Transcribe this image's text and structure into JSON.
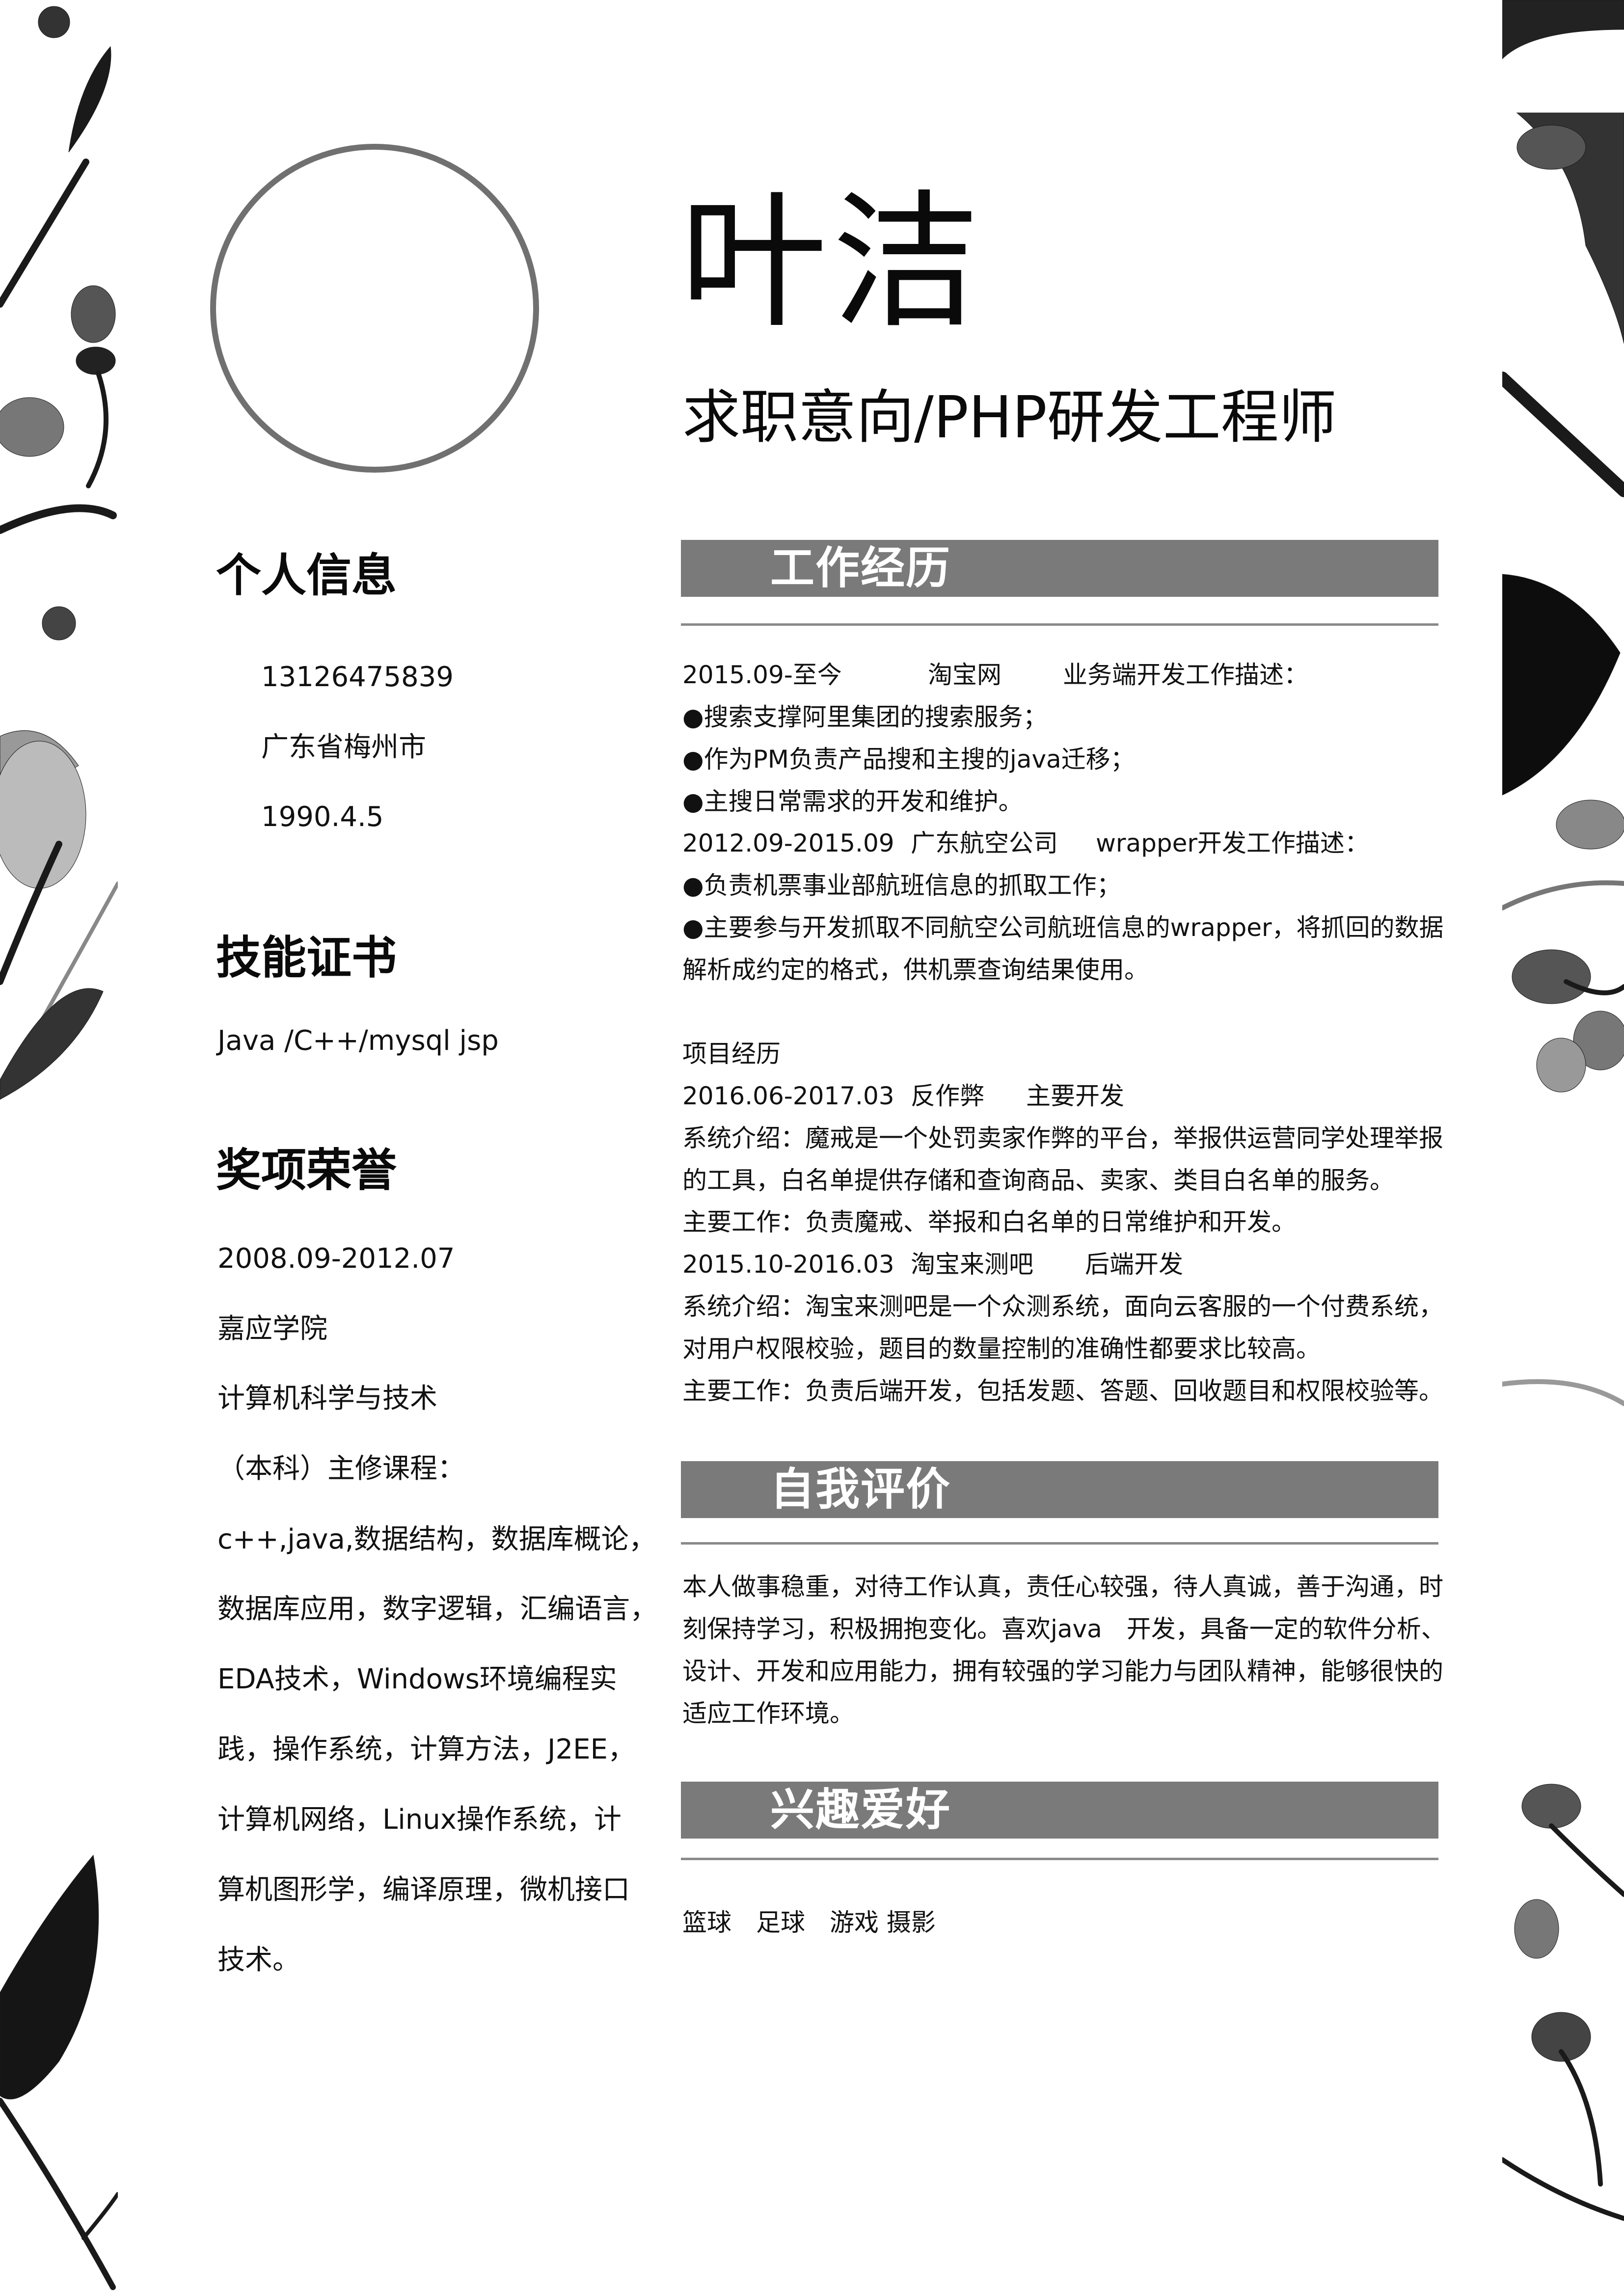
{
  "header": {
    "name": "叶洁",
    "intent": "求职意向/PHP研发工程师"
  },
  "personal": {
    "heading": "个人信息",
    "phone": "13126475839",
    "location": "广东省梅州市",
    "birth": "1990.4.5"
  },
  "skills": {
    "heading": "技能证书",
    "text": "Java /C++/mysql jsp"
  },
  "awards": {
    "heading": "奖项荣誉",
    "lines": [
      "2008.09-2012.07",
      "嘉应学院",
      "计算机科学与技术",
      "（本科）主修课程：",
      "c++,java,数据结构，数据库概论，",
      "数据库应用，数字逻辑，汇编语言，",
      "EDA技术，Windows环境编程实",
      "践，操作系统，计算方法，J2EE，",
      "计算机网络，Linux操作系统，计",
      "算机图形学，编译原理，微机接口",
      "技术。"
    ]
  },
  "work": {
    "heading": "工作经历",
    "job1": {
      "period": "2015.09-至今",
      "company": "淘宝网",
      "role": "业务端开发工作描述：",
      "bullets": [
        "●搜索支撑阿里集团的搜索服务；",
        "●作为PM负责产品搜和主搜的java迁移；",
        "●主搜日常需求的开发和维护。"
      ]
    },
    "job2": {
      "period": "2012.09-2015.09",
      "company": "广东航空公司",
      "role": "wrapper开发工作描述：",
      "bullets": [
        "●负责机票事业部航班信息的抓取工作；",
        "●主要参与开发抓取不同航空公司航班信息的wrapper，将抓回的数据",
        "解析成约定的格式，供机票查询结果使用。"
      ]
    },
    "projects_label": "项目经历",
    "project1": {
      "period": "2016.06-2017.03",
      "name": "反作弊",
      "role": "主要开发",
      "lines": [
        "系统介绍：魔戒是一个处罚卖家作弊的平台，举报供运营同学处理举报",
        "的工具，白名单提供存储和查询商品、卖家、类目白名单的服务。",
        "主要工作：负责魔戒、举报和白名单的日常维护和开发。"
      ]
    },
    "project2": {
      "period": "2015.10-2016.03",
      "name": "淘宝来测吧",
      "role": "后端开发",
      "lines": [
        "系统介绍：淘宝来测吧是一个众测系统，面向云客服的一个付费系统，",
        "对用户权限校验，题目的数量控制的准确性都要求比较高。",
        "主要工作：负责后端开发，包括发题、答题、回收题目和权限校验等。"
      ]
    }
  },
  "self_eval": {
    "heading": "自我评价",
    "lines": [
      "本人做事稳重，对待工作认真，责任心较强，待人真诚，善于沟通，时",
      "刻保持学习，积极拥抱变化。喜欢java　开发，具备一定的软件分析、",
      "设计、开发和应用能力，拥有较强的学习能力与团队精神，能够很快的",
      "适应工作环境。"
    ]
  },
  "hobbies": {
    "heading": "兴趣爱好",
    "text": "篮球　足球　游戏  摄影"
  },
  "colors": {
    "section_bar": "#7a7a7a",
    "circle": "#707070",
    "text": "#111111"
  }
}
